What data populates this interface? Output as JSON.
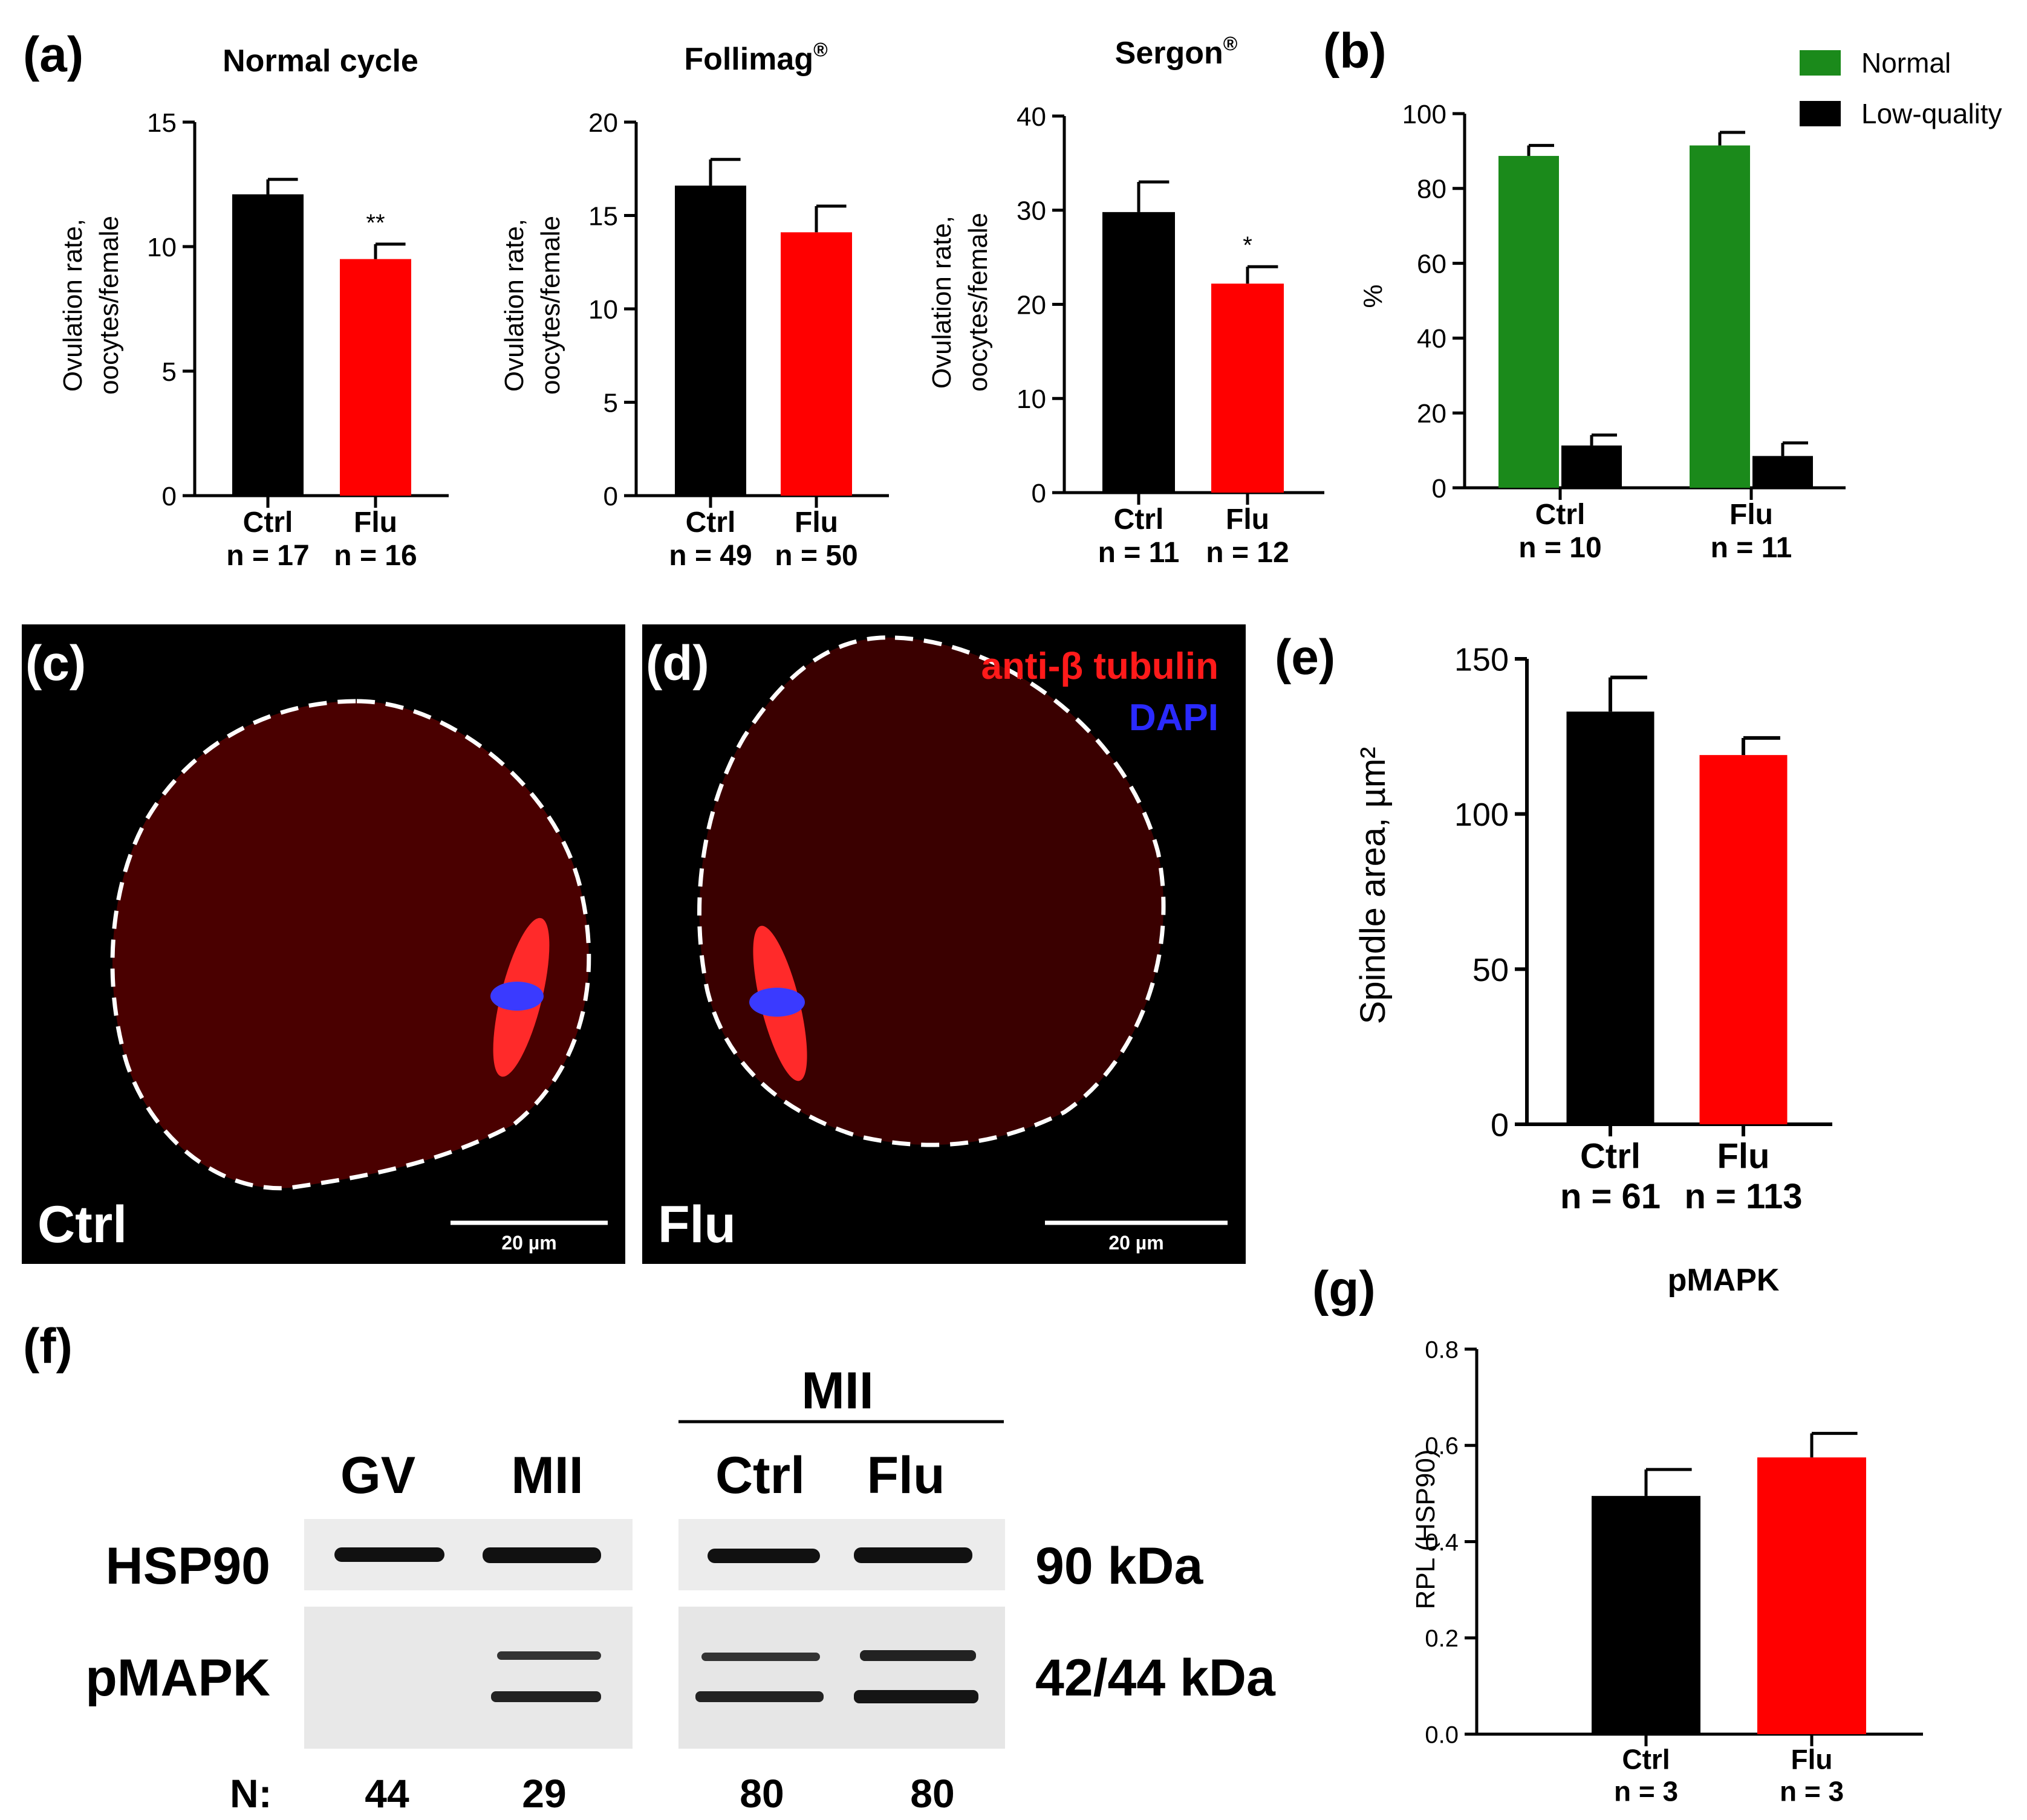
{
  "colors": {
    "ctrl": "#000000",
    "flu": "#ff0000",
    "normal": "#1b8a1b",
    "low": "#000000",
    "oocyte": "#4a0000",
    "spindle": "#ff2a2a",
    "dapi": "#3a3aff"
  },
  "panel_labels": {
    "a": "(a)",
    "b": "(b)",
    "c": "(c)",
    "d": "(d)",
    "e": "(e)",
    "f": "(f)",
    "g": "(g)"
  },
  "chart_data": [
    {
      "id": "a1",
      "type": "bar",
      "title": "Normal cycle",
      "ylabel": [
        "Ovulation rate,",
        "oocytes/female"
      ],
      "ylim": [
        0,
        15
      ],
      "yticks": [
        0,
        5,
        10,
        15
      ],
      "categories": [
        "Ctrl",
        "Flu"
      ],
      "n_labels": [
        "n = 17",
        "n = 16"
      ],
      "values": [
        12.1,
        9.5
      ],
      "errors": [
        0.6,
        0.6
      ],
      "annotations": [
        "",
        "**"
      ]
    },
    {
      "id": "a2",
      "type": "bar",
      "title": "Follimag",
      "title_sup": "®",
      "ylabel": [
        "Ovulation rate,",
        "oocytes/female"
      ],
      "ylim": [
        0,
        20
      ],
      "yticks": [
        0,
        5,
        10,
        15,
        20
      ],
      "categories": [
        "Ctrl",
        "Flu"
      ],
      "n_labels": [
        "n = 49",
        "n = 50"
      ],
      "values": [
        16.6,
        14.1
      ],
      "errors": [
        1.4,
        1.4
      ],
      "annotations": [
        "",
        ""
      ]
    },
    {
      "id": "a3",
      "type": "bar",
      "title": "Sergon",
      "title_sup": "®",
      "ylabel": [
        "Ovulation rate,",
        "oocytes/female"
      ],
      "ylim": [
        0,
        40
      ],
      "yticks": [
        0,
        10,
        20,
        30,
        40
      ],
      "categories": [
        "Ctrl",
        "Flu"
      ],
      "n_labels": [
        "n = 11",
        "n = 12"
      ],
      "values": [
        29.8,
        22.2
      ],
      "errors": [
        3.2,
        1.8
      ],
      "annotations": [
        "",
        "*"
      ]
    },
    {
      "id": "b",
      "type": "bar",
      "title": "",
      "ylabel": [
        "%"
      ],
      "ylim": [
        0,
        100
      ],
      "yticks": [
        0,
        20,
        40,
        60,
        80,
        100
      ],
      "categories": [
        "Ctrl",
        "Flu"
      ],
      "n_labels": [
        "n = 10",
        "n = 11"
      ],
      "series": [
        {
          "name": "Normal",
          "values": [
            88.7,
            91.5
          ],
          "errors": [
            2.8,
            3.5
          ]
        },
        {
          "name": "Low-quality",
          "values": [
            11.3,
            8.5
          ],
          "errors": [
            2.8,
            3.5
          ]
        }
      ],
      "legend": "top-right"
    },
    {
      "id": "e",
      "type": "bar",
      "title": "",
      "ylabel": [
        "Spindle area, µm²"
      ],
      "ylim": [
        0,
        150
      ],
      "yticks": [
        0,
        50,
        100,
        150
      ],
      "categories": [
        "Ctrl",
        "Flu"
      ],
      "n_labels": [
        "n = 61",
        "n = 113"
      ],
      "values": [
        133,
        119
      ],
      "errors": [
        11,
        5.5
      ],
      "annotations": [
        "",
        ""
      ]
    },
    {
      "id": "g",
      "type": "bar",
      "title": "pMAPK",
      "ylabel": [
        "RPL (HSP90)"
      ],
      "ylim": [
        0,
        0.8
      ],
      "yticks": [
        "0.0",
        "0.2",
        "0.4",
        "0.6",
        "0.8"
      ],
      "categories": [
        "Ctrl",
        "Flu"
      ],
      "n_labels": [
        "n = 3",
        "n = 3"
      ],
      "values": [
        0.495,
        0.575
      ],
      "errors": [
        0.055,
        0.05
      ],
      "annotations": [
        "",
        ""
      ]
    }
  ],
  "micrographs": {
    "c": {
      "label": "Ctrl",
      "scale_bar": "20 µm"
    },
    "d": {
      "label": "Flu",
      "scale_bar": "20 µm",
      "legend_red": "anti-β tubulin",
      "legend_blue": "DAPI"
    }
  },
  "blot": {
    "group_label": "MII",
    "lanes": [
      "GV",
      "MII",
      "Ctrl",
      "Flu"
    ],
    "rows": [
      {
        "protein": "HSP90",
        "mw": "90 kDa"
      },
      {
        "protein": "pMAPK",
        "mw": "42/44 kDa"
      }
    ],
    "n_prefix": "N:",
    "n_values": [
      "44",
      "29",
      "80",
      "80"
    ]
  }
}
